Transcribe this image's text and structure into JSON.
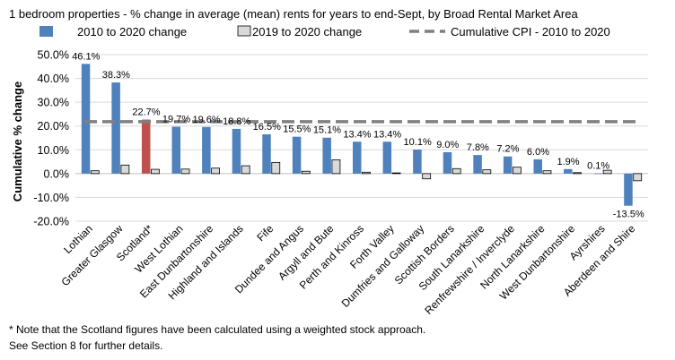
{
  "chart_data": {
    "type": "bar",
    "title": "1 bedroom properties - % change in average (mean) rents for years to end-Sept, by Broad Rental Market Area",
    "ylabel": "Cumulative % change",
    "xlabel": "",
    "ylim": [
      -20,
      50
    ],
    "ytick_step": 10,
    "yticks": [
      "-20.0%",
      "-10.0%",
      "0.0%",
      "10.0%",
      "20.0%",
      "30.0%",
      "40.0%",
      "50.0%"
    ],
    "categories": [
      "Lothian",
      "Greater Glasgow",
      "Scotland*",
      "West Lothian",
      "East Dunbartonshire",
      "Highland and Islands",
      "Fife",
      "Dundee and Angus",
      "Argyll and Bute",
      "Perth and Kinross",
      "Forth Valley",
      "Dumfries and Galloway",
      "Scottish Borders",
      "South Lanarkshire",
      "Renfrewshire / Inverclyde",
      "North Lanarkshire",
      "West Dunbartonshire",
      "Ayrshires",
      "Aberdeen and Shire"
    ],
    "highlight_category": "Scotland*",
    "series": [
      {
        "name": "2010 to 2020 change",
        "color": "#4f81bd",
        "highlight_color": "#c0504d",
        "values": [
          46.1,
          38.3,
          22.7,
          19.7,
          19.6,
          18.8,
          16.5,
          15.5,
          15.1,
          13.4,
          13.4,
          10.1,
          9.0,
          7.8,
          7.2,
          6.0,
          1.9,
          0.1,
          -13.5
        ],
        "labels": [
          "46.1%",
          "38.3%",
          "22.7%",
          "19.7%",
          "19.6%",
          "18.8%",
          "16.5%",
          "15.5%",
          "15.1%",
          "13.4%",
          "13.4%",
          "10.1%",
          "9.0%",
          "7.8%",
          "7.2%",
          "6.0%",
          "1.9%",
          "0.1%",
          "-13.5%"
        ]
      },
      {
        "name": "2019 to 2020 change",
        "color": "#d9d9d9",
        "values": [
          1.2,
          3.6,
          1.8,
          1.9,
          2.3,
          3.3,
          4.7,
          1.0,
          5.8,
          0.6,
          0.3,
          -2.2,
          2.1,
          1.6,
          2.7,
          1.2,
          0.4,
          1.4,
          -3.0
        ]
      },
      {
        "name": "Cumulative CPI - 2010 to 2020",
        "color": "#808080",
        "style": "dashed",
        "value": 21.8
      }
    ]
  },
  "notes": [
    "* Note that the Scotland figures have been calculated using a weighted stock approach.",
    "See Section 8 for further details."
  ]
}
